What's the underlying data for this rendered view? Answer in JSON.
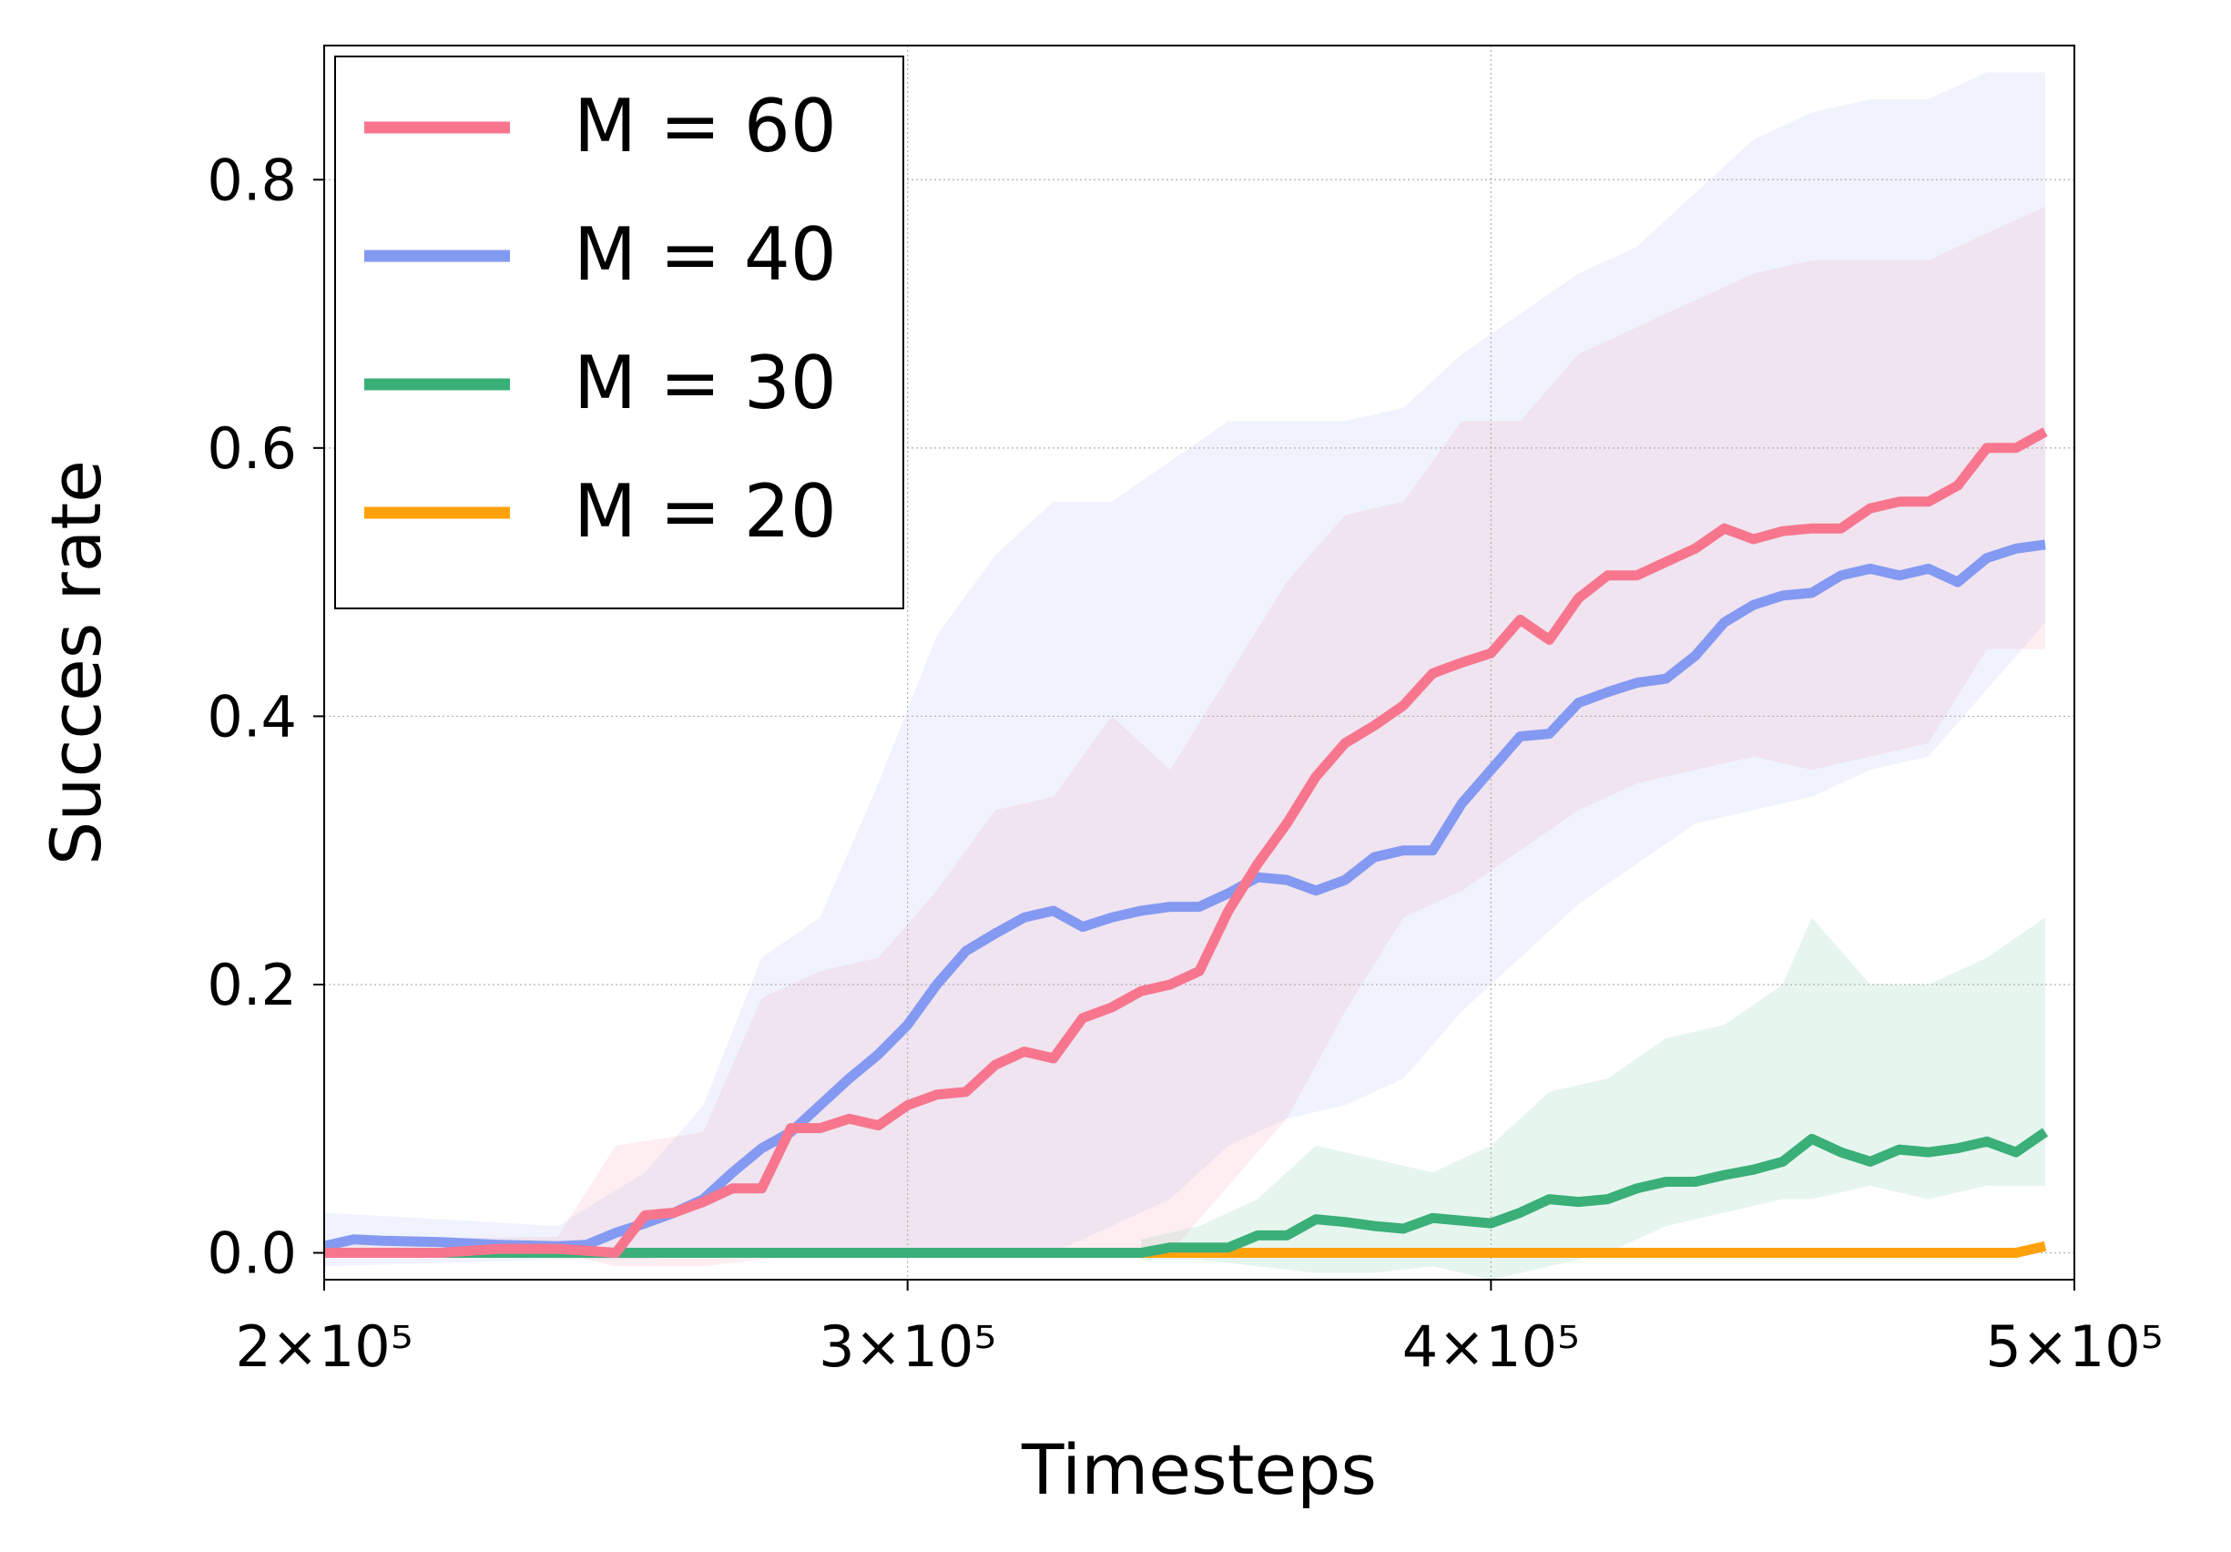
{
  "chart_data": {
    "type": "line",
    "xlabel": "Timesteps",
    "ylabel": "Succes rate",
    "xlim": [
      200000,
      500000
    ],
    "ylim": [
      -0.02,
      0.9
    ],
    "x_ticks": [
      {
        "value": 200000,
        "label": "2×10⁵"
      },
      {
        "value": 300000,
        "label": "3×10⁵"
      },
      {
        "value": 400000,
        "label": "4×10⁵"
      },
      {
        "value": 500000,
        "label": "5×10⁵"
      }
    ],
    "y_ticks": [
      {
        "value": 0.0,
        "label": "0.0"
      },
      {
        "value": 0.2,
        "label": "0.2"
      },
      {
        "value": 0.4,
        "label": "0.4"
      },
      {
        "value": 0.6,
        "label": "0.6"
      },
      {
        "value": 0.8,
        "label": "0.8"
      }
    ],
    "grid": true,
    "legend_position": "upper-left",
    "series": [
      {
        "name": "M = 60",
        "color": "#F7768E",
        "points": [
          [
            200000,
            0.0
          ],
          [
            210000,
            0.0
          ],
          [
            220000,
            0.0
          ],
          [
            230000,
            0.003
          ],
          [
            240000,
            0.003
          ],
          [
            250000,
            0.0
          ],
          [
            255000,
            0.028
          ],
          [
            260000,
            0.03
          ],
          [
            265000,
            0.038
          ],
          [
            270000,
            0.048
          ],
          [
            275000,
            0.048
          ],
          [
            280000,
            0.093
          ],
          [
            285000,
            0.093
          ],
          [
            290000,
            0.1
          ],
          [
            295000,
            0.095
          ],
          [
            300000,
            0.11
          ],
          [
            305000,
            0.118
          ],
          [
            310000,
            0.12
          ],
          [
            315000,
            0.14
          ],
          [
            320000,
            0.15
          ],
          [
            325000,
            0.145
          ],
          [
            330000,
            0.175
          ],
          [
            335000,
            0.183
          ],
          [
            340000,
            0.195
          ],
          [
            345000,
            0.2
          ],
          [
            350000,
            0.21
          ],
          [
            355000,
            0.255
          ],
          [
            360000,
            0.29
          ],
          [
            365000,
            0.32
          ],
          [
            370000,
            0.355
          ],
          [
            375000,
            0.38
          ],
          [
            380000,
            0.393
          ],
          [
            385000,
            0.408
          ],
          [
            390000,
            0.432
          ],
          [
            395000,
            0.44
          ],
          [
            400000,
            0.447
          ],
          [
            405000,
            0.472
          ],
          [
            410000,
            0.457
          ],
          [
            415000,
            0.488
          ],
          [
            420000,
            0.505
          ],
          [
            425000,
            0.505
          ],
          [
            430000,
            0.515
          ],
          [
            435000,
            0.525
          ],
          [
            440000,
            0.54
          ],
          [
            445000,
            0.532
          ],
          [
            450000,
            0.538
          ],
          [
            455000,
            0.54
          ],
          [
            460000,
            0.54
          ],
          [
            465000,
            0.555
          ],
          [
            470000,
            0.56
          ],
          [
            475000,
            0.56
          ],
          [
            480000,
            0.572
          ],
          [
            485000,
            0.6
          ],
          [
            490000,
            0.6
          ],
          [
            495000,
            0.612
          ]
        ],
        "band": [
          [
            200000,
            0.0,
            0.01
          ],
          [
            240000,
            0.0,
            0.012
          ],
          [
            250000,
            -0.01,
            0.08
          ],
          [
            265000,
            -0.01,
            0.09
          ],
          [
            275000,
            -0.005,
            0.19
          ],
          [
            285000,
            0.0,
            0.21
          ],
          [
            295000,
            0.0,
            0.22
          ],
          [
            305000,
            0.0,
            0.27
          ],
          [
            315000,
            0.0,
            0.33
          ],
          [
            325000,
            0.0,
            0.34
          ],
          [
            335000,
            0.0,
            0.4
          ],
          [
            345000,
            0.0,
            0.36
          ],
          [
            355000,
            0.05,
            0.43
          ],
          [
            365000,
            0.1,
            0.5
          ],
          [
            375000,
            0.18,
            0.55
          ],
          [
            385000,
            0.25,
            0.56
          ],
          [
            395000,
            0.27,
            0.62
          ],
          [
            405000,
            0.3,
            0.62
          ],
          [
            415000,
            0.33,
            0.67
          ],
          [
            425000,
            0.35,
            0.69
          ],
          [
            435000,
            0.36,
            0.71
          ],
          [
            445000,
            0.37,
            0.73
          ],
          [
            455000,
            0.36,
            0.74
          ],
          [
            465000,
            0.37,
            0.74
          ],
          [
            475000,
            0.38,
            0.74
          ],
          [
            485000,
            0.45,
            0.76
          ],
          [
            495000,
            0.45,
            0.78
          ]
        ]
      },
      {
        "name": "M = 40",
        "color": "#8499F1",
        "points": [
          [
            200000,
            0.005
          ],
          [
            205000,
            0.01
          ],
          [
            210000,
            0.009
          ],
          [
            220000,
            0.008
          ],
          [
            230000,
            0.006
          ],
          [
            240000,
            0.005
          ],
          [
            245000,
            0.006
          ],
          [
            250000,
            0.015
          ],
          [
            255000,
            0.022
          ],
          [
            260000,
            0.03
          ],
          [
            265000,
            0.04
          ],
          [
            270000,
            0.06
          ],
          [
            275000,
            0.078
          ],
          [
            280000,
            0.09
          ],
          [
            285000,
            0.11
          ],
          [
            290000,
            0.13
          ],
          [
            295000,
            0.148
          ],
          [
            300000,
            0.17
          ],
          [
            305000,
            0.2
          ],
          [
            310000,
            0.225
          ],
          [
            315000,
            0.238
          ],
          [
            320000,
            0.25
          ],
          [
            325000,
            0.255
          ],
          [
            330000,
            0.243
          ],
          [
            335000,
            0.25
          ],
          [
            340000,
            0.255
          ],
          [
            345000,
            0.258
          ],
          [
            350000,
            0.258
          ],
          [
            355000,
            0.268
          ],
          [
            360000,
            0.28
          ],
          [
            365000,
            0.278
          ],
          [
            370000,
            0.27
          ],
          [
            375000,
            0.278
          ],
          [
            380000,
            0.295
          ],
          [
            385000,
            0.3
          ],
          [
            390000,
            0.3
          ],
          [
            395000,
            0.335
          ],
          [
            400000,
            0.36
          ],
          [
            405000,
            0.385
          ],
          [
            410000,
            0.387
          ],
          [
            415000,
            0.41
          ],
          [
            420000,
            0.418
          ],
          [
            425000,
            0.425
          ],
          [
            430000,
            0.428
          ],
          [
            435000,
            0.445
          ],
          [
            440000,
            0.47
          ],
          [
            445000,
            0.483
          ],
          [
            450000,
            0.49
          ],
          [
            455000,
            0.492
          ],
          [
            460000,
            0.505
          ],
          [
            465000,
            0.51
          ],
          [
            470000,
            0.505
          ],
          [
            475000,
            0.51
          ],
          [
            480000,
            0.5
          ],
          [
            485000,
            0.518
          ],
          [
            490000,
            0.525
          ],
          [
            495000,
            0.528
          ]
        ],
        "band": [
          [
            200000,
            -0.01,
            0.03
          ],
          [
            240000,
            -0.005,
            0.02
          ],
          [
            255000,
            -0.005,
            0.06
          ],
          [
            265000,
            0.0,
            0.11
          ],
          [
            275000,
            0.0,
            0.22
          ],
          [
            285000,
            0.0,
            0.25
          ],
          [
            295000,
            0.0,
            0.35
          ],
          [
            305000,
            0.0,
            0.46
          ],
          [
            315000,
            0.0,
            0.52
          ],
          [
            325000,
            0.0,
            0.56
          ],
          [
            335000,
            0.02,
            0.56
          ],
          [
            345000,
            0.04,
            0.59
          ],
          [
            355000,
            0.08,
            0.62
          ],
          [
            365000,
            0.1,
            0.62
          ],
          [
            375000,
            0.11,
            0.62
          ],
          [
            385000,
            0.13,
            0.63
          ],
          [
            395000,
            0.18,
            0.67
          ],
          [
            405000,
            0.22,
            0.7
          ],
          [
            415000,
            0.26,
            0.73
          ],
          [
            425000,
            0.29,
            0.75
          ],
          [
            435000,
            0.32,
            0.79
          ],
          [
            445000,
            0.33,
            0.83
          ],
          [
            455000,
            0.34,
            0.85
          ],
          [
            465000,
            0.36,
            0.86
          ],
          [
            475000,
            0.37,
            0.86
          ],
          [
            485000,
            0.42,
            0.88
          ],
          [
            495000,
            0.47,
            0.88
          ]
        ]
      },
      {
        "name": "M = 30",
        "color": "#3AAF78",
        "points": [
          [
            200000,
            0.0
          ],
          [
            250000,
            0.0
          ],
          [
            300000,
            0.0
          ],
          [
            340000,
            0.0
          ],
          [
            345000,
            0.004
          ],
          [
            355000,
            0.004
          ],
          [
            360000,
            0.013
          ],
          [
            365000,
            0.013
          ],
          [
            370000,
            0.025
          ],
          [
            375000,
            0.023
          ],
          [
            380000,
            0.02
          ],
          [
            385000,
            0.018
          ],
          [
            390000,
            0.026
          ],
          [
            395000,
            0.024
          ],
          [
            400000,
            0.022
          ],
          [
            405000,
            0.03
          ],
          [
            410000,
            0.04
          ],
          [
            415000,
            0.038
          ],
          [
            420000,
            0.04
          ],
          [
            425000,
            0.048
          ],
          [
            430000,
            0.053
          ],
          [
            435000,
            0.053
          ],
          [
            440000,
            0.058
          ],
          [
            445000,
            0.062
          ],
          [
            450000,
            0.068
          ],
          [
            455000,
            0.085
          ],
          [
            460000,
            0.075
          ],
          [
            465000,
            0.068
          ],
          [
            470000,
            0.077
          ],
          [
            475000,
            0.075
          ],
          [
            480000,
            0.078
          ],
          [
            485000,
            0.083
          ],
          [
            490000,
            0.075
          ],
          [
            495000,
            0.09
          ]
        ],
        "band": [
          [
            340000,
            -0.005,
            0.01
          ],
          [
            350000,
            -0.005,
            0.02
          ],
          [
            360000,
            -0.01,
            0.04
          ],
          [
            370000,
            -0.015,
            0.08
          ],
          [
            380000,
            -0.015,
            0.07
          ],
          [
            390000,
            -0.01,
            0.06
          ],
          [
            400000,
            -0.02,
            0.08
          ],
          [
            410000,
            -0.01,
            0.12
          ],
          [
            420000,
            0.0,
            0.13
          ],
          [
            430000,
            0.02,
            0.16
          ],
          [
            440000,
            0.03,
            0.17
          ],
          [
            450000,
            0.04,
            0.2
          ],
          [
            455000,
            0.04,
            0.25
          ],
          [
            465000,
            0.05,
            0.2
          ],
          [
            475000,
            0.04,
            0.2
          ],
          [
            485000,
            0.05,
            0.22
          ],
          [
            495000,
            0.05,
            0.25
          ]
        ]
      },
      {
        "name": "M = 20",
        "color": "#FFA10A",
        "points": [
          [
            200000,
            0.0
          ],
          [
            250000,
            0.0
          ],
          [
            300000,
            0.0
          ],
          [
            350000,
            0.0
          ],
          [
            400000,
            0.0
          ],
          [
            450000,
            0.0
          ],
          [
            490000,
            0.0
          ],
          [
            495000,
            0.005
          ]
        ],
        "band": []
      }
    ]
  }
}
